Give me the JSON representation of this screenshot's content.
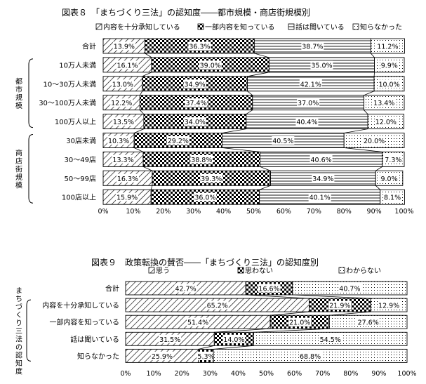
{
  "chart_data": [
    {
      "type": "bar",
      "title": "図表８　「まちづくり三法」の認知度――都市規模・商店街規模別",
      "series": [
        {
          "name": "内容を十分承知している",
          "pattern": "diag",
          "values": [
            13.9,
            16.1,
            13.0,
            12.2,
            13.5,
            10.3,
            13.3,
            16.3,
            15.9
          ]
        },
        {
          "name": "一部内容を知っている",
          "pattern": "check",
          "values": [
            36.3,
            39.0,
            34.9,
            37.4,
            34.0,
            29.2,
            38.8,
            39.3,
            36.0
          ]
        },
        {
          "name": "話は聞いている",
          "pattern": "hlines",
          "values": [
            38.7,
            35.0,
            42.1,
            37.0,
            40.4,
            40.5,
            40.6,
            34.9,
            40.1
          ]
        },
        {
          "name": "知らなかった",
          "pattern": "dots",
          "values": [
            11.2,
            9.9,
            10.0,
            13.4,
            12.0,
            20.0,
            7.3,
            9.0,
            8.1
          ]
        }
      ],
      "categories": [
        "合計",
        "10万人未満",
        "10～30万人未満",
        "30～100万人未満",
        "100万人以上",
        "30店未満",
        "30～49店",
        "50～99店",
        "100店以上"
      ],
      "groups": [
        {
          "label": "都市規模",
          "from": 1,
          "to": 4
        },
        {
          "label": "商店街規模",
          "from": 5,
          "to": 8
        }
      ],
      "xlim": [
        0,
        100
      ],
      "xticks": [
        "0%",
        "10%",
        "20%",
        "30%",
        "40%",
        "50%",
        "60%",
        "70%",
        "80%",
        "90%",
        "100%"
      ],
      "legend_position": "top"
    },
    {
      "type": "bar",
      "title": "図表９　政策転換の賛否――「まちづくり三法」の認知度別",
      "series": [
        {
          "name": "思う",
          "pattern": "diag",
          "values": [
            42.7,
            65.2,
            51.4,
            31.5,
            25.9
          ]
        },
        {
          "name": "思わない",
          "pattern": "check",
          "values": [
            16.6,
            21.9,
            21.0,
            14.0,
            5.3
          ]
        },
        {
          "name": "わからない",
          "pattern": "dots",
          "values": [
            40.7,
            12.9,
            27.6,
            54.5,
            68.8
          ]
        }
      ],
      "categories": [
        "合計",
        "内容を十分承知している",
        "一部内容を知っている",
        "話は聞いている",
        "知らなかった"
      ],
      "groups": [
        {
          "label": "まちづくり三法の認知度",
          "from": 1,
          "to": 4
        }
      ],
      "xlim": [
        0,
        100
      ],
      "xticks": [
        "0%",
        "10%",
        "20%",
        "30%",
        "40%",
        "50%",
        "60%",
        "70%",
        "80%",
        "90%",
        "100%"
      ],
      "legend_position": "top"
    }
  ]
}
